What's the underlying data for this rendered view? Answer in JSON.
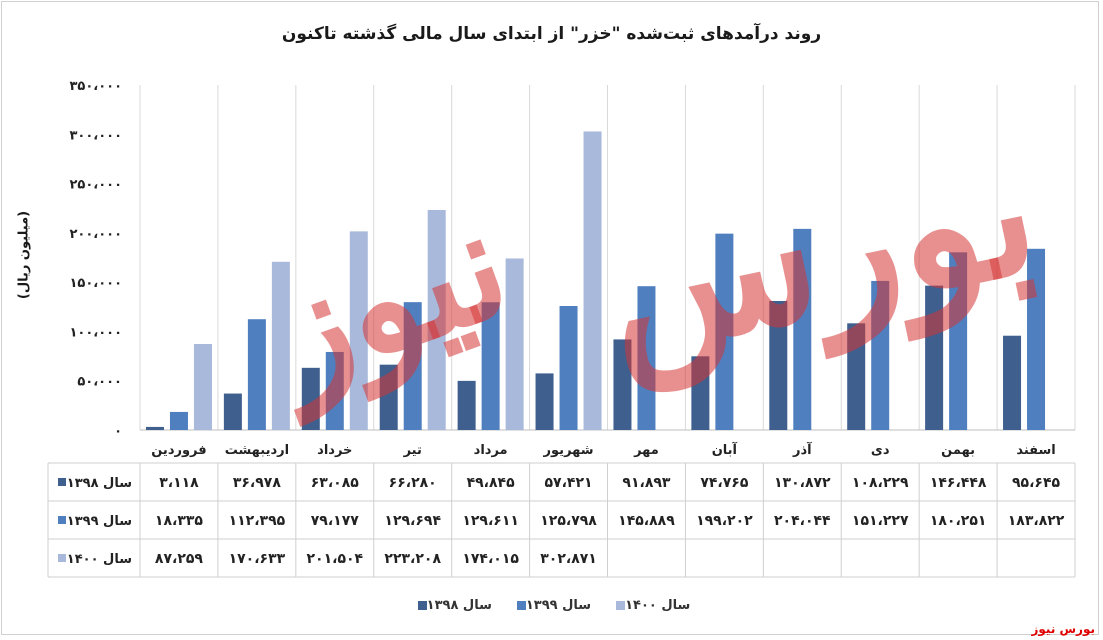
{
  "chart_data": {
    "type": "bar",
    "title": "روند درآمدهای ثبت‌شده \"خزر\" از ابتدای سال مالی گذشته تاکنون",
    "ylabel": "(میلیون ریال)",
    "xlabel": "",
    "ylim": [
      0,
      350000
    ],
    "yticks": [
      0,
      50000,
      100000,
      150000,
      200000,
      250000,
      300000,
      350000
    ],
    "ytick_labels": [
      "۰",
      "۵۰،۰۰۰",
      "۱۰۰،۰۰۰",
      "۱۵۰،۰۰۰",
      "۲۰۰،۰۰۰",
      "۲۵۰،۰۰۰",
      "۳۰۰،۰۰۰",
      "۳۵۰،۰۰۰"
    ],
    "grid": "vertical",
    "legend_position": "bottom",
    "categories": [
      "فروردین",
      "اردیبهشت",
      "خرداد",
      "تیر",
      "مرداد",
      "شهریور",
      "مهر",
      "آبان",
      "آذر",
      "دی",
      "بهمن",
      "اسفند"
    ],
    "series": [
      {
        "name": "سال ۱۳۹۸",
        "color": "#3f5f8f",
        "values": [
          3118,
          36978,
          63085,
          66280,
          49845,
          57421,
          91893,
          74765,
          130872,
          108229,
          146448,
          95645
        ],
        "labels": [
          "۳،۱۱۸",
          "۳۶،۹۷۸",
          "۶۳،۰۸۵",
          "۶۶،۲۸۰",
          "۴۹،۸۴۵",
          "۵۷،۴۲۱",
          "۹۱،۸۹۳",
          "۷۴،۷۶۵",
          "۱۳۰،۸۷۲",
          "۱۰۸،۲۲۹",
          "۱۴۶،۴۴۸",
          "۹۵،۶۴۵"
        ]
      },
      {
        "name": "سال ۱۳۹۹",
        "color": "#4f7fbf",
        "values": [
          18335,
          112395,
          79177,
          129694,
          129611,
          125798,
          145889,
          199202,
          204044,
          151227,
          180251,
          183822
        ],
        "labels": [
          "۱۸،۳۳۵",
          "۱۱۲،۳۹۵",
          "۷۹،۱۷۷",
          "۱۲۹،۶۹۴",
          "۱۲۹،۶۱۱",
          "۱۲۵،۷۹۸",
          "۱۴۵،۸۸۹",
          "۱۹۹،۲۰۲",
          "۲۰۴،۰۴۴",
          "۱۵۱،۲۲۷",
          "۱۸۰،۲۵۱",
          "۱۸۳،۸۲۲"
        ]
      },
      {
        "name": "سال ۱۴۰۰",
        "color": "#a9b9db",
        "values": [
          87259,
          170633,
          201504,
          223208,
          174015,
          302871,
          null,
          null,
          null,
          null,
          null,
          null
        ],
        "labels": [
          "۸۷،۲۵۹",
          "۱۷۰،۶۳۳",
          "۲۰۱،۵۰۴",
          "۲۲۳،۲۰۸",
          "۱۷۴،۰۱۵",
          "۳۰۲،۸۷۱",
          "",
          "",
          "",
          "",
          "",
          ""
        ]
      }
    ]
  },
  "watermark": {
    "line1": "بورس",
    "line2": "نیوز"
  },
  "source": "بورس نیوز"
}
